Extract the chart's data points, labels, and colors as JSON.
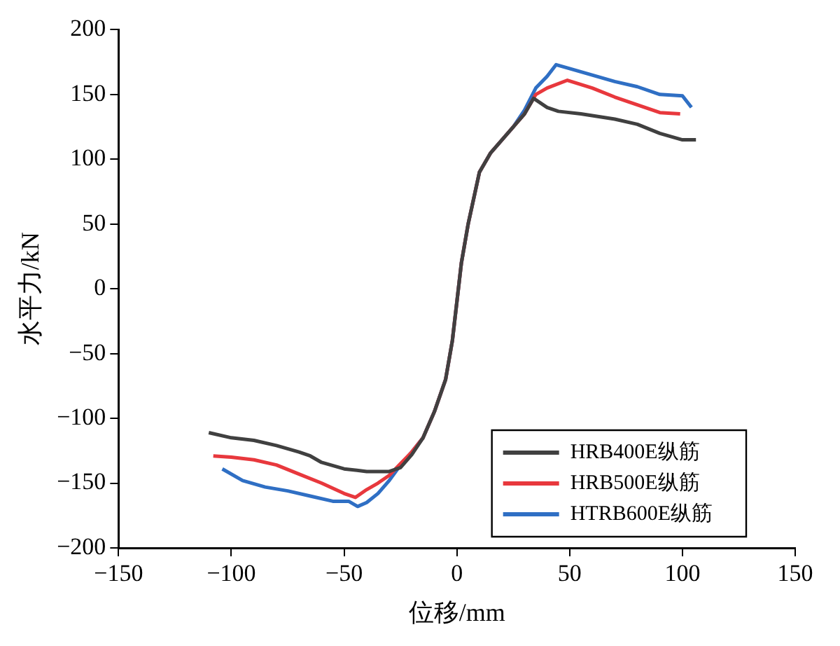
{
  "chart_data": {
    "type": "line",
    "xlabel": "位移/mm",
    "ylabel": "水平力/kN",
    "xlim": [
      -150,
      150
    ],
    "xticks": [
      -150,
      -100,
      -50,
      0,
      50,
      100,
      150
    ],
    "ylim": [
      -200,
      200
    ],
    "yticks": [
      -200,
      -150,
      -100,
      -50,
      0,
      50,
      100,
      150,
      200
    ],
    "grid": false,
    "legend": "bottom right",
    "marker": "none",
    "line_style": "solid",
    "series": [
      {
        "name": "HRB400E纵筋",
        "color": "#404040",
        "x": [
          -110,
          -100,
          -90,
          -80,
          -70,
          -65,
          -60,
          -50,
          -40,
          -30,
          -25,
          -20,
          -15,
          -10,
          -5,
          -2,
          0,
          2,
          5,
          10,
          15,
          20,
          25,
          30,
          34,
          40,
          45,
          55,
          70,
          80,
          90,
          100,
          106
        ],
        "values": [
          -111,
          -115,
          -117,
          -121,
          -126,
          -129,
          -134,
          -139,
          -141,
          -141,
          -138,
          -128,
          -115,
          -95,
          -70,
          -40,
          -10,
          20,
          50,
          90,
          105,
          115,
          125,
          135,
          147,
          140,
          137,
          135,
          131,
          127,
          120,
          115,
          115
        ]
      },
      {
        "name": "HRB500E纵筋",
        "color": "#e8383d",
        "x": [
          -108,
          -100,
          -90,
          -80,
          -70,
          -60,
          -50,
          -45,
          -40,
          -35,
          -30,
          -25,
          -20,
          -15,
          -10,
          -5,
          -2,
          0,
          2,
          5,
          10,
          15,
          20,
          25,
          30,
          35,
          40,
          49,
          60,
          70,
          80,
          90,
          99
        ],
        "values": [
          -129,
          -130,
          -132,
          -136,
          -143,
          -150,
          -158,
          -161,
          -155,
          -150,
          -144,
          -135,
          -126,
          -115,
          -95,
          -70,
          -40,
          -10,
          20,
          50,
          90,
          105,
          115,
          125,
          135,
          150,
          155,
          161,
          155,
          148,
          142,
          136,
          135
        ]
      },
      {
        "name": "HTRB600E纵筋",
        "color": "#2f6fc4",
        "x": [
          -104,
          -95,
          -85,
          -75,
          -65,
          -55,
          -48,
          -44,
          -40,
          -35,
          -30,
          -25,
          -20,
          -15,
          -10,
          -5,
          -2,
          0,
          2,
          5,
          10,
          15,
          20,
          25,
          30,
          35,
          40,
          44,
          50,
          60,
          70,
          80,
          90,
          100,
          104
        ],
        "values": [
          -139,
          -148,
          -153,
          -156,
          -160,
          -164,
          -164,
          -168,
          -165,
          -158,
          -148,
          -136,
          -126,
          -115,
          -95,
          -70,
          -40,
          -10,
          20,
          50,
          90,
          105,
          115,
          125,
          138,
          155,
          164,
          173,
          170,
          165,
          160,
          156,
          150,
          149,
          140
        ]
      }
    ]
  }
}
